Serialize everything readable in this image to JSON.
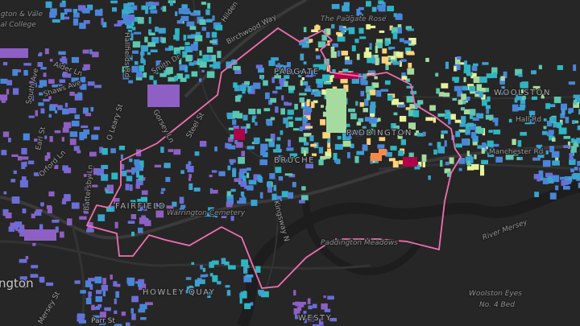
{
  "map": {
    "colors": {
      "background": "#262626",
      "road": "#363636",
      "major_road": "#3c3c3c",
      "river": "#1c1c1c",
      "boundary": "#f06fb0",
      "building_palette": [
        "#8e5fc4",
        "#6b6ed8",
        "#4a86d8",
        "#3aa3d0",
        "#2fb5c2",
        "#5cc6b0",
        "#a6dba0",
        "#e8f29a",
        "#fdd37a",
        "#f58a4c",
        "#b0004a"
      ]
    },
    "labels": {
      "vale_college_1": "ngton & Vale",
      "vale_college_2": "val College",
      "birchwood_way": "Birchwood Way",
      "hilden": "Hilden",
      "hallfields_rd": "Hallfields Rd",
      "smith_dr": "Smith Dr",
      "alder_ln": "Alder Ln",
      "shaws_ave": "Shaws Ave",
      "south_ave": "South Ave",
      "gorsey_ln": "Gorsey Ln",
      "steel_st": "Steel St",
      "oleary_st": "O Leary St",
      "earl_st": "Earl St",
      "orford_ln": "Orford Ln",
      "battersby_ln": "Battersby Ln",
      "fairfield": "FAIRFIELD",
      "warrington_cemetery": "Warrington Cemetery",
      "kingsway_n": "Kingsway N",
      "howley_quay": "HOWLEY QUAY",
      "mersey_st": "Mersey St",
      "parr_st": "Parr St",
      "warrington": "ngton",
      "padgate": "PADGATE",
      "paddington": "PADDINGTON",
      "bruche": "BRUCHE",
      "padgate_rose": "The Padgate Rose",
      "woolston": "WOOLSTON",
      "hall_rd": "Hall Rd",
      "manchester_rd": "Manchester Rd",
      "river_mersey": "River Mersey",
      "paddington_meadows": "Paddington Meadows",
      "woolston_eyes_1": "Woolston Eyes",
      "woolston_eyes_2": "No. 4 Bed",
      "westy": "WESTY"
    }
  }
}
